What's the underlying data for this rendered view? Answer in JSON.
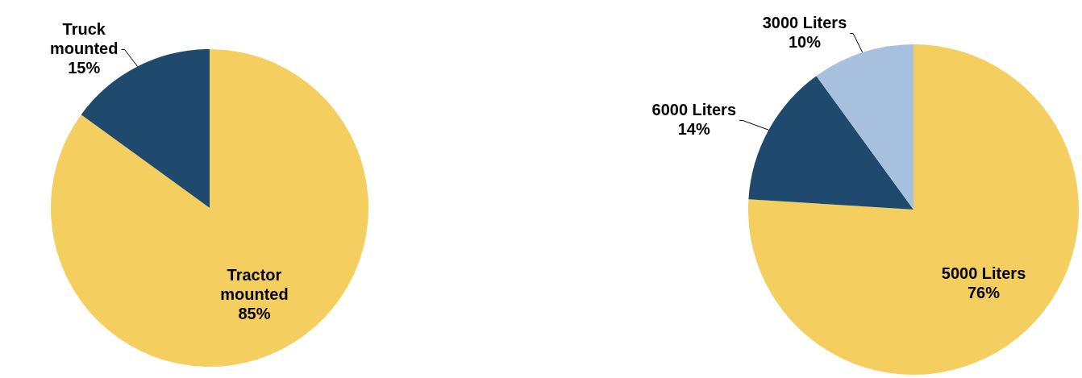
{
  "chart_data": [
    {
      "type": "pie",
      "categories": [
        "Tractor mounted",
        "Truck mounted"
      ],
      "values": [
        85,
        15
      ],
      "colors": [
        "#f4cf5f",
        "#1f4a6e"
      ],
      "value_labels": [
        "85%",
        "15%"
      ],
      "legend": false
    },
    {
      "type": "pie",
      "categories": [
        "5000 Liters",
        "6000 Liters",
        "3000 Liters"
      ],
      "values": [
        76,
        14,
        10
      ],
      "colors": [
        "#f4cf5f",
        "#1f4a6e",
        "#a7c0dd"
      ],
      "value_labels": [
        "76%",
        "14%",
        "10%"
      ],
      "legend": false
    }
  ]
}
